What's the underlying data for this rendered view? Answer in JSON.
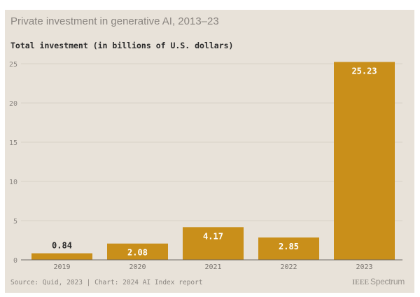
{
  "header": {
    "title": "Private investment in generative AI, 2013–23",
    "subtitle": "Total investment (in billions of U.S. dollars)"
  },
  "footer": {
    "source": "Source: Quid, 2023 | Chart: 2024 AI Index report",
    "brand_prefix": "IEEE",
    "brand_name": "Spectrum"
  },
  "colors": {
    "bar": "#c98f1a",
    "label_inside": "#ffffff",
    "label_outside": "#2b2b2b",
    "grid": "#d8d2c8",
    "axis": "#6e6a66"
  },
  "chart_data": {
    "type": "bar",
    "title": "Private investment in generative AI, 2013–23",
    "subtitle": "Total investment (in billions of U.S. dollars)",
    "xlabel": "",
    "ylabel": "Total investment (in billions of U.S. dollars)",
    "categories": [
      "2019",
      "2020",
      "2021",
      "2022",
      "2023"
    ],
    "values": [
      0.84,
      2.08,
      4.17,
      2.85,
      25.23
    ],
    "data_labels": [
      "0.84",
      "2.08",
      "4.17",
      "2.85",
      "25.23"
    ],
    "ylim": [
      0,
      25
    ],
    "yticks": [
      0,
      5,
      10,
      15,
      20,
      25
    ],
    "grid": true,
    "legend": "none",
    "source": "Source: Quid, 2023 | Chart: 2024 AI Index report"
  }
}
